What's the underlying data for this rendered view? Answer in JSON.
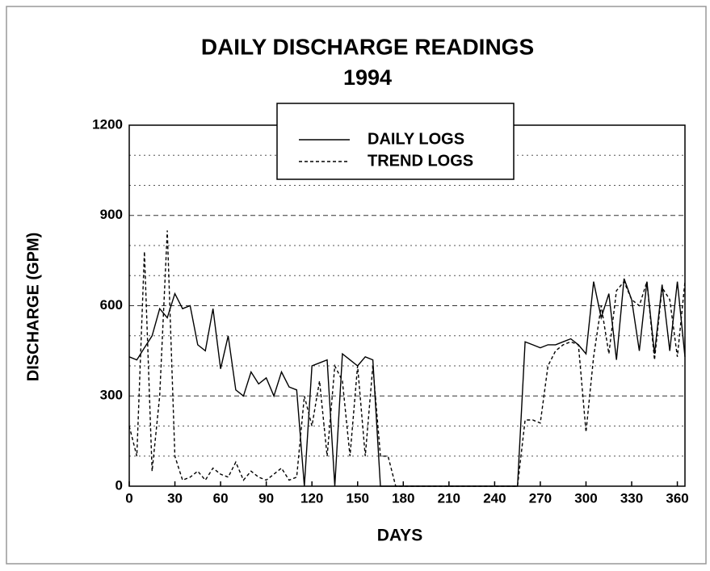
{
  "chart_data": {
    "type": "line",
    "title": "DAILY DISCHARGE READINGS",
    "subtitle": "1994",
    "x_label": "DAYS",
    "y_label": "DISCHARGE (GPM)",
    "x": [
      0,
      5,
      10,
      15,
      20,
      25,
      30,
      35,
      40,
      45,
      50,
      55,
      60,
      65,
      70,
      75,
      80,
      85,
      90,
      95,
      100,
      105,
      110,
      115,
      120,
      125,
      130,
      135,
      140,
      145,
      150,
      155,
      160,
      165,
      170,
      175,
      180,
      185,
      190,
      195,
      200,
      205,
      210,
      215,
      220,
      225,
      230,
      235,
      240,
      245,
      250,
      255,
      260,
      265,
      270,
      275,
      280,
      285,
      290,
      295,
      300,
      305,
      310,
      315,
      320,
      325,
      330,
      335,
      340,
      345,
      350,
      355,
      360,
      365
    ],
    "series": [
      {
        "name": "DAILY LOGS",
        "color": "#000000",
        "dash": "solid",
        "values": [
          430,
          420,
          460,
          500,
          590,
          560,
          640,
          590,
          600,
          470,
          450,
          590,
          390,
          500,
          320,
          300,
          380,
          340,
          360,
          300,
          380,
          330,
          320,
          0,
          400,
          410,
          420,
          0,
          440,
          420,
          400,
          430,
          420,
          0,
          0,
          0,
          0,
          0,
          0,
          0,
          0,
          0,
          0,
          0,
          0,
          0,
          0,
          0,
          0,
          0,
          0,
          0,
          480,
          470,
          460,
          470,
          470,
          480,
          490,
          470,
          440,
          680,
          560,
          640,
          420,
          690,
          620,
          450,
          680,
          440,
          670,
          450,
          680,
          430
        ]
      },
      {
        "name": "TREND LOGS",
        "color": "#000000",
        "dash": "dashed",
        "values": [
          200,
          100,
          780,
          50,
          300,
          850,
          100,
          20,
          30,
          50,
          20,
          60,
          40,
          30,
          80,
          20,
          50,
          30,
          20,
          40,
          60,
          20,
          30,
          300,
          200,
          350,
          100,
          400,
          350,
          100,
          400,
          100,
          400,
          100,
          100,
          0,
          0,
          0,
          0,
          0,
          0,
          0,
          0,
          0,
          0,
          0,
          0,
          0,
          0,
          0,
          0,
          0,
          220,
          220,
          210,
          400,
          450,
          470,
          480,
          470,
          180,
          430,
          600,
          440,
          650,
          680,
          620,
          600,
          680,
          420,
          660,
          620,
          430,
          680
        ]
      }
    ],
    "xlim": [
      0,
      365
    ],
    "xticks": [
      0,
      30,
      60,
      90,
      120,
      150,
      180,
      210,
      240,
      270,
      300,
      330,
      360
    ],
    "ylim": [
      0,
      1200
    ],
    "yticks": [
      0,
      300,
      600,
      900,
      1200
    ],
    "minor_yticks": [
      100,
      200,
      400,
      500,
      700,
      800,
      1000,
      1100
    ],
    "grid": true,
    "legend": "top"
  }
}
